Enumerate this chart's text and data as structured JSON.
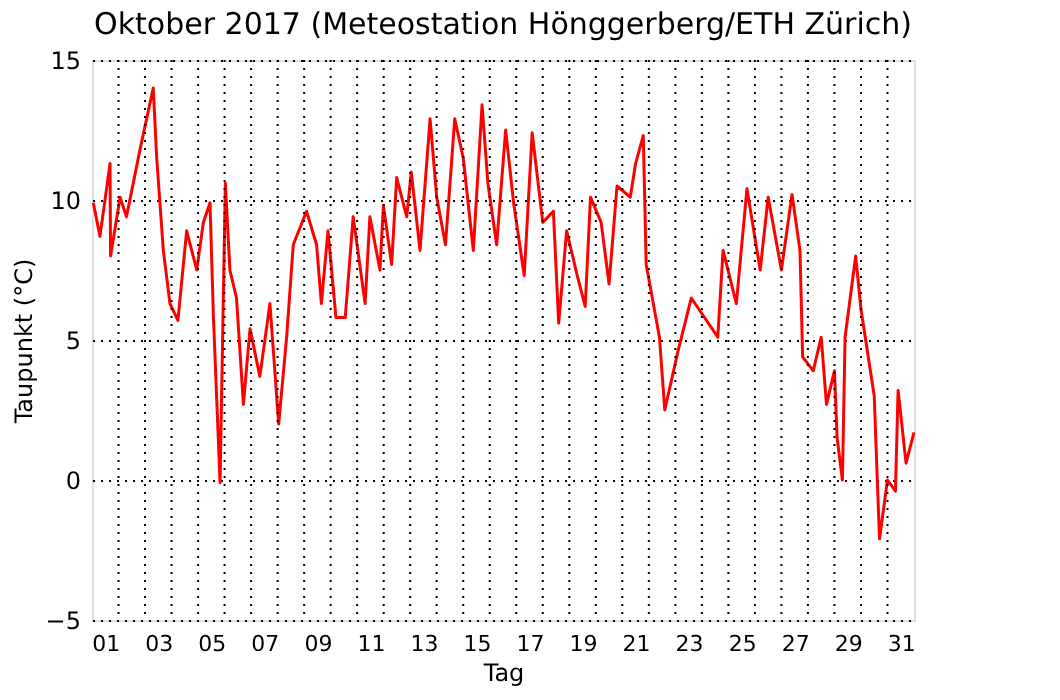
{
  "chart_data": {
    "type": "line",
    "title": "Oktober 2017  (Meteostation Hönggerberg/ETH Zürich)",
    "xlabel": "Tag",
    "ylabel": "Taupunkt (°C)",
    "xlim": [
      1,
      32
    ],
    "ylim": [
      -5,
      15
    ],
    "yticks": [
      -5,
      0,
      5,
      10,
      15
    ],
    "xticks": [
      {
        "value": 1.5,
        "label": "01"
      },
      {
        "value": 2,
        "label": null
      },
      {
        "value": 3,
        "label": null
      },
      {
        "value": 3.5,
        "label": "03"
      },
      {
        "value": 4,
        "label": null
      },
      {
        "value": 5,
        "label": null
      },
      {
        "value": 5.5,
        "label": "05"
      },
      {
        "value": 6,
        "label": null
      },
      {
        "value": 7,
        "label": null
      },
      {
        "value": 7.5,
        "label": "07"
      },
      {
        "value": 8,
        "label": null
      },
      {
        "value": 9,
        "label": null
      },
      {
        "value": 9.5,
        "label": "09"
      },
      {
        "value": 10,
        "label": null
      },
      {
        "value": 11,
        "label": null
      },
      {
        "value": 11.5,
        "label": "11"
      },
      {
        "value": 12,
        "label": null
      },
      {
        "value": 13,
        "label": null
      },
      {
        "value": 13.5,
        "label": "13"
      },
      {
        "value": 14,
        "label": null
      },
      {
        "value": 15,
        "label": null
      },
      {
        "value": 15.5,
        "label": "15"
      },
      {
        "value": 16,
        "label": null
      },
      {
        "value": 17,
        "label": null
      },
      {
        "value": 17.5,
        "label": "17"
      },
      {
        "value": 18,
        "label": null
      },
      {
        "value": 19,
        "label": null
      },
      {
        "value": 19.5,
        "label": "19"
      },
      {
        "value": 20,
        "label": null
      },
      {
        "value": 21,
        "label": null
      },
      {
        "value": 21.5,
        "label": "21"
      },
      {
        "value": 22,
        "label": null
      },
      {
        "value": 23,
        "label": null
      },
      {
        "value": 23.5,
        "label": "23"
      },
      {
        "value": 24,
        "label": null
      },
      {
        "value": 25,
        "label": null
      },
      {
        "value": 25.5,
        "label": "25"
      },
      {
        "value": 26,
        "label": null
      },
      {
        "value": 27,
        "label": null
      },
      {
        "value": 27.5,
        "label": "27"
      },
      {
        "value": 28,
        "label": null
      },
      {
        "value": 29,
        "label": null
      },
      {
        "value": 29.5,
        "label": "29"
      },
      {
        "value": 30,
        "label": null
      },
      {
        "value": 31,
        "label": null
      },
      {
        "value": 31.5,
        "label": "31"
      }
    ],
    "grid": true,
    "legend": false,
    "line_style": "solid",
    "marker": "none",
    "series": [
      {
        "color": "#ff0000",
        "x": [
          1.05,
          1.3,
          1.68,
          1.7,
          2.06,
          2.3,
          2.81,
          3.31,
          3.44,
          3.69,
          3.94,
          4.24,
          4.57,
          4.95,
          5.2,
          5.45,
          5.58,
          5.83,
          6.03,
          6.2,
          6.45,
          6.71,
          6.96,
          7.33,
          7.71,
          8.04,
          8.34,
          8.59,
          9.09,
          9.47,
          9.65,
          9.9,
          10.2,
          10.55,
          10.85,
          11.3,
          11.48,
          11.86,
          11.99,
          12.3,
          12.49,
          12.87,
          13.04,
          13.37,
          13.75,
          14.0,
          14.33,
          14.68,
          15.0,
          15.38,
          15.71,
          15.93,
          16.26,
          16.6,
          16.9,
          17.3,
          17.6,
          18.0,
          18.4,
          18.6,
          18.9,
          19.3,
          19.6,
          19.8,
          20.2,
          20.5,
          20.8,
          21.3,
          21.5,
          21.79,
          21.9,
          22.4,
          22.6,
          23.1,
          23.6,
          24.6,
          24.8,
          25.3,
          25.7,
          26.2,
          26.5,
          27.0,
          27.4,
          27.7,
          27.8,
          28.2,
          28.5,
          28.7,
          29.0,
          29.1,
          29.3,
          29.4,
          29.8,
          30.0,
          30.5,
          30.6,
          30.7,
          31.0,
          31.3,
          31.4,
          31.7,
          32.0
        ],
        "values": [
          9.9,
          8.7,
          11.3,
          8.0,
          10.1,
          9.4,
          11.8,
          14.0,
          11.5,
          8.2,
          6.3,
          5.7,
          8.9,
          7.5,
          9.2,
          9.9,
          5.8,
          -0.1,
          10.6,
          7.5,
          6.5,
          2.7,
          5.4,
          3.7,
          6.3,
          2.0,
          5.1,
          8.4,
          9.6,
          8.4,
          6.3,
          8.9,
          5.8,
          5.8,
          9.4,
          6.3,
          9.4,
          7.5,
          9.8,
          7.7,
          10.8,
          9.4,
          11.0,
          8.2,
          12.9,
          10.1,
          8.4,
          12.9,
          11.5,
          8.2,
          13.4,
          10.6,
          8.4,
          12.5,
          9.9,
          7.3,
          12.4,
          9.2,
          9.6,
          5.6,
          8.9,
          7.3,
          6.2,
          10.1,
          9.2,
          7.0,
          10.5,
          10.1,
          11.3,
          12.3,
          7.7,
          5.1,
          2.5,
          4.6,
          6.5,
          5.1,
          8.2,
          6.3,
          10.4,
          7.5,
          10.1,
          7.5,
          10.2,
          8.2,
          4.4,
          3.9,
          5.1,
          2.7,
          3.9,
          1.5,
          0.0,
          5.1,
          8.0,
          6.1,
          3.0,
          0.4,
          -2.1,
          0.0,
          -0.4,
          3.2,
          0.6,
          1.7
        ]
      }
    ]
  }
}
